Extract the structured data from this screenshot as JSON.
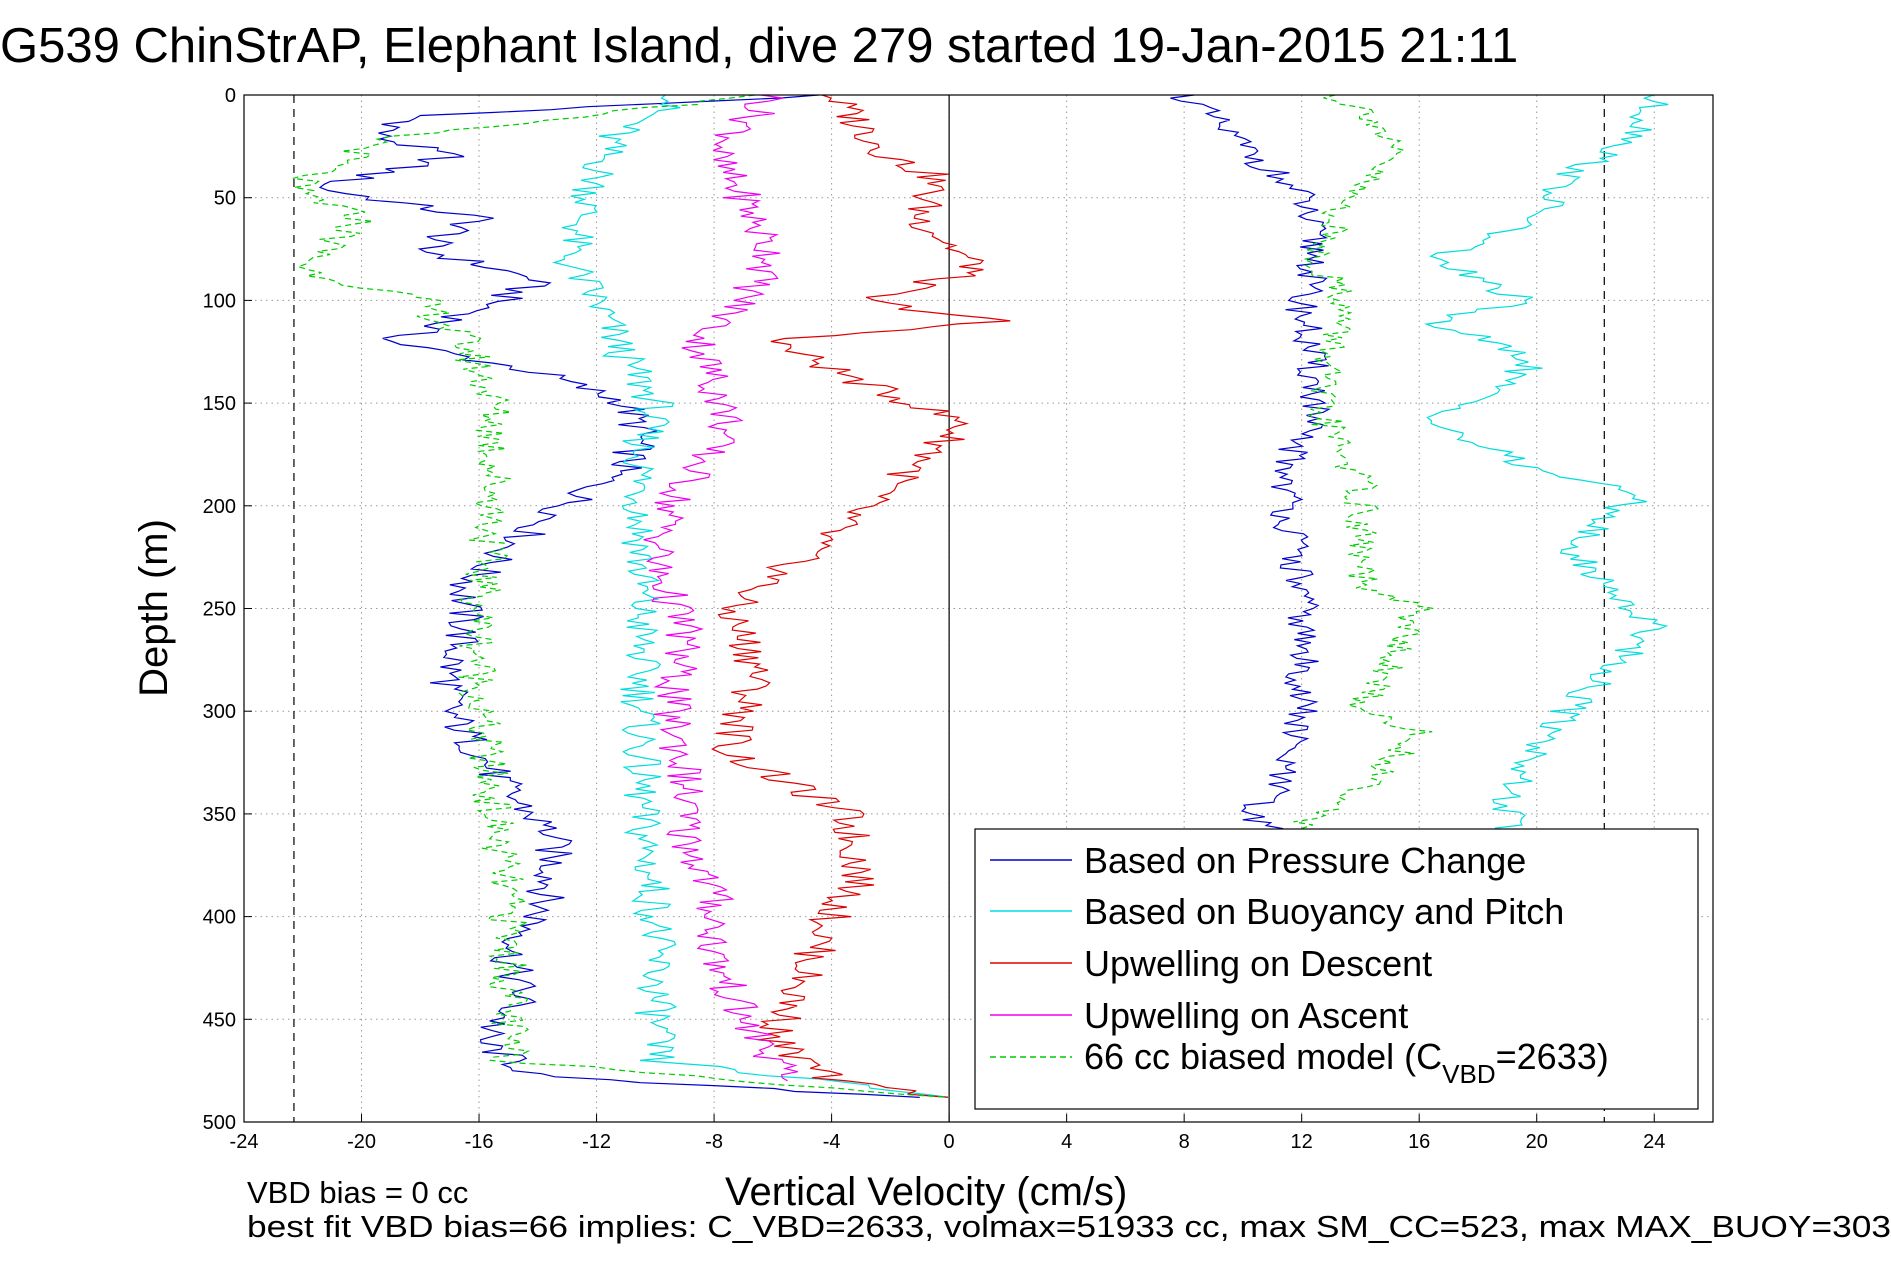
{
  "chart_data": {
    "type": "line",
    "title": "G539 ChinStrAP, Elephant Island, dive 279 started 19-Jan-2015 21:11",
    "xlabel": "Vertical Velocity (cm/s)",
    "ylabel": "Depth (m)",
    "xlim": [
      -24,
      26
    ],
    "ylim": [
      0,
      500
    ],
    "y_reversed": true,
    "xticks": [
      "-24",
      "-20",
      "-16",
      "-12",
      "-8",
      "-4",
      "0",
      "4",
      "8",
      "12",
      "16",
      "20",
      "24"
    ],
    "yticks": [
      "0",
      "50",
      "100",
      "150",
      "200",
      "250",
      "300",
      "350",
      "400",
      "450",
      "500"
    ],
    "grid": true,
    "legend_placement": "bottom-right",
    "reference_lines": [
      {
        "x": -22.3,
        "style": "dashed",
        "color": "#000000"
      },
      {
        "x": 0,
        "style": "solid",
        "color": "#000000"
      },
      {
        "x": 22.3,
        "style": "dashed",
        "color": "#000000"
      }
    ],
    "series": [
      {
        "name": "Based on Pressure Change",
        "color": "#0000cc",
        "style": "solid",
        "depth": [
          0,
          10,
          20,
          30,
          45,
          60,
          75,
          90,
          105,
          120,
          135,
          150,
          165,
          180,
          200,
          220,
          240,
          260,
          280,
          300,
          320,
          340,
          360,
          380,
          400,
          420,
          440,
          460,
          478,
          488
        ],
        "velocity": [
          -4,
          -18,
          -19.5,
          -17,
          -21.5,
          -16,
          -18,
          -14,
          -16,
          -19,
          -14,
          -11,
          -10.5,
          -11,
          -13,
          -15,
          -16.5,
          -16.5,
          -17,
          -17,
          -16,
          -15,
          -13.5,
          -13.5,
          -14,
          -15,
          -14.5,
          -16,
          -14,
          -1
        ],
        "ascent_depth": [
          0,
          50,
          80,
          100,
          150,
          180,
          200,
          250,
          300,
          340,
          350,
          360
        ],
        "ascent_velocity": [
          8,
          12,
          12.5,
          12,
          12.5,
          11.5,
          11.5,
          12,
          12,
          11,
          10,
          11.5
        ]
      },
      {
        "name": "Based on Buoyancy and Pitch",
        "color": "#00dddd",
        "style": "solid",
        "depth": [
          0,
          20,
          40,
          60,
          80,
          100,
          130,
          150,
          170,
          200,
          250,
          300,
          350,
          400,
          450,
          470,
          488
        ],
        "velocity": [
          -9,
          -11.5,
          -12,
          -12.5,
          -13,
          -12,
          -11,
          -10,
          -10.5,
          -10.5,
          -10.5,
          -10.5,
          -10.5,
          -10,
          -10,
          -10,
          0
        ],
        "ascent_depth": [
          0,
          20,
          40,
          60,
          80,
          100,
          110,
          130,
          160,
          180,
          195,
          220,
          260,
          300,
          340,
          360
        ],
        "ascent_velocity": [
          24,
          23.5,
          21,
          20,
          16.5,
          19.5,
          16.5,
          20,
          16.5,
          19.5,
          23.5,
          21,
          24,
          21,
          19,
          19
        ]
      },
      {
        "name": "Upwelling on Descent",
        "color": "#dd0000",
        "style": "solid",
        "depth": [
          0,
          30,
          40,
          60,
          85,
          100,
          110,
          120,
          140,
          160,
          180,
          200,
          230,
          250,
          280,
          300,
          320,
          350,
          380,
          400,
          430,
          460,
          480,
          488
        ],
        "velocity": [
          -4,
          -2,
          -0.5,
          -1,
          1,
          -3,
          1.5,
          -6,
          -3,
          0.5,
          -1,
          -3,
          -5.5,
          -7.5,
          -6.5,
          -7,
          -7.5,
          -3.5,
          -3,
          -4,
          -5,
          -6,
          -4,
          0
        ]
      },
      {
        "name": "Upwelling on Ascent",
        "color": "#ee00ee",
        "style": "solid",
        "depth": [
          0,
          30,
          50,
          80,
          100,
          120,
          140,
          160,
          180,
          200,
          230,
          260,
          300,
          330,
          360,
          390,
          420,
          450,
          480
        ],
        "velocity": [
          -6,
          -8,
          -7,
          -6,
          -7,
          -8.5,
          -8,
          -7.5,
          -8.5,
          -9.5,
          -10,
          -9,
          -9.5,
          -9,
          -9,
          -8,
          -8,
          -7,
          -5.5
        ]
      },
      {
        "name": "66 cc biased model (C_VBD=2633)",
        "color": "#00cc00",
        "style": "dashed",
        "depth": [
          0,
          20,
          45,
          60,
          85,
          100,
          120,
          135,
          150,
          175,
          200,
          250,
          300,
          350,
          400,
          440,
          470,
          488
        ],
        "velocity": [
          -6,
          -19,
          -22.5,
          -20,
          -22,
          -18,
          -16.5,
          -16,
          -15.5,
          -15.5,
          -15.5,
          -16,
          -16,
          -15.5,
          -15,
          -15,
          -15,
          0
        ],
        "ascent_depth": [
          0,
          10,
          30,
          50,
          80,
          100,
          150,
          190,
          200,
          240,
          250,
          300,
          310,
          340,
          360
        ],
        "ascent_velocity": [
          13,
          14.5,
          15,
          13.5,
          12.5,
          13.5,
          12.5,
          14,
          14,
          14,
          16,
          14,
          16,
          14,
          11.5
        ]
      }
    ],
    "legend_entries": [
      "Based on Pressure Change",
      "Based on Buoyancy and Pitch",
      "Upwelling on Descent",
      "Upwelling on Ascent",
      "66 cc biased model (C"
    ],
    "legend_subscript": "VBD",
    "legend_suffix": "=2633)",
    "footer_line1": "VBD bias = 0 cc",
    "footer_line2": "best fit VBD bias=66 implies: C_VBD=2633, volmax=51933 cc, max SM_CC=523, max MAX_BUOY=303"
  }
}
